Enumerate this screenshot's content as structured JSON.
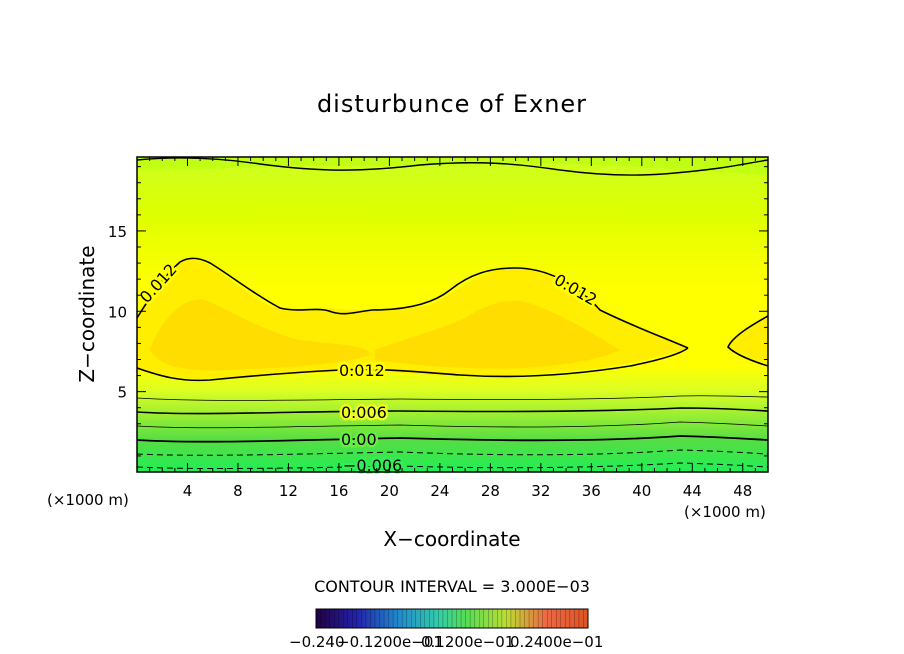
{
  "chart_data": {
    "type": "contour",
    "title": "disturbunce of Exner",
    "xlabel": "X−coordinate",
    "ylabel": "Z−coordinate",
    "x_unit_left": "(×1000 m)",
    "x_unit_right": "(×1000 m)",
    "xlim": [
      0,
      50
    ],
    "ylim": [
      0,
      19.6
    ],
    "x_ticks": [
      4,
      8,
      12,
      16,
      20,
      24,
      28,
      32,
      36,
      40,
      44,
      48
    ],
    "y_ticks": [
      5,
      10,
      15
    ],
    "contour_interval_text": "CONTOUR INTERVAL = 3.000E−03",
    "contour_labels": [
      "0.012",
      "0.012",
      "0.012",
      "0.006",
      "0.00",
      "−0.006"
    ],
    "colorbar_labels": [
      "−0.240",
      "−0.1200e−01",
      "0.1200e−01",
      "0.2400e−01"
    ],
    "colors": {
      "top_band": "#ccff00",
      "mid_band": "#ffff00",
      "core": "#ffdd00",
      "bottom_green": "#33ee44",
      "frame": "#000000"
    }
  }
}
